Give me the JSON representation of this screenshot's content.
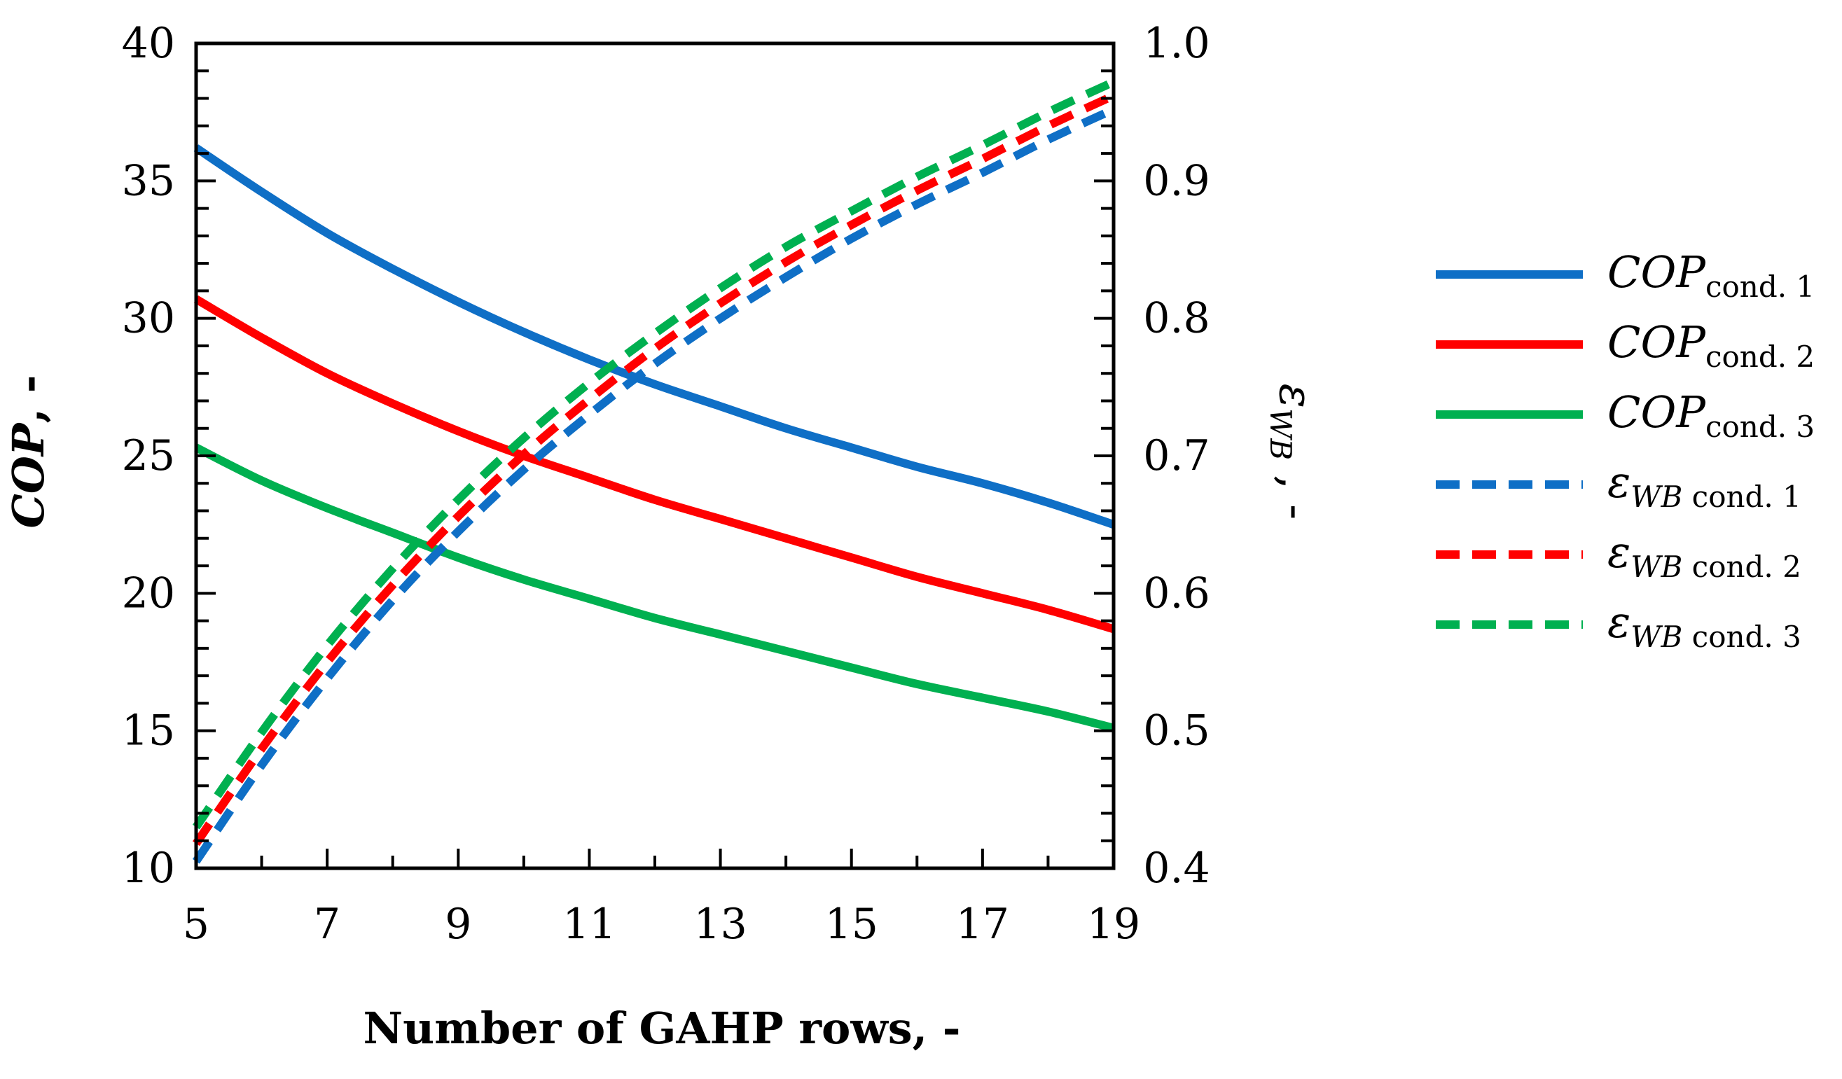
{
  "chart_data": {
    "type": "line",
    "title": "",
    "xlabel": "Number of GAHP rows, -",
    "ylabel_left": {
      "main": "COP",
      "suffix": ", -"
    },
    "ylabel_right": {
      "main": "ε",
      "sub": "WB",
      "suffix": " , -"
    },
    "xlim": [
      5,
      19
    ],
    "ylim_left": [
      10,
      40
    ],
    "ylim_right": [
      0.4,
      1.0
    ],
    "x_ticks": [
      "5",
      "7",
      "9",
      "11",
      "13",
      "15",
      "17",
      "19"
    ],
    "y_left_ticks": [
      "10",
      "15",
      "20",
      "25",
      "30",
      "35",
      "40"
    ],
    "y_right_ticks": [
      "0.4",
      "0.5",
      "0.6",
      "0.7",
      "0.8",
      "0.9",
      "1.0"
    ],
    "grid": false,
    "legend_position": "right",
    "x": [
      5,
      6,
      7,
      8,
      9,
      10,
      11,
      12,
      13,
      14,
      15,
      16,
      17,
      18,
      19
    ],
    "series": [
      {
        "name": "COP cond. 1",
        "label_main": "COP",
        "label_sub": "cond. 1",
        "axis": "left",
        "style": "solid",
        "color": "#0F6FC6",
        "values": [
          36.2,
          34.6,
          33.1,
          31.8,
          30.6,
          29.5,
          28.5,
          27.6,
          26.8,
          26.0,
          25.3,
          24.6,
          24.0,
          23.3,
          22.5
        ]
      },
      {
        "name": "COP cond. 2",
        "label_main": "COP",
        "label_sub": "cond. 2",
        "axis": "left",
        "style": "solid",
        "color": "#FF0000",
        "values": [
          30.7,
          29.3,
          28.0,
          26.9,
          25.9,
          25.0,
          24.2,
          23.4,
          22.7,
          22.0,
          21.3,
          20.6,
          20.0,
          19.4,
          18.7
        ]
      },
      {
        "name": "COP cond. 3",
        "label_main": "COP",
        "label_sub": "cond. 3",
        "axis": "left",
        "style": "solid",
        "color": "#00B050",
        "values": [
          25.3,
          24.1,
          23.1,
          22.2,
          21.3,
          20.5,
          19.8,
          19.1,
          18.5,
          17.9,
          17.3,
          16.7,
          16.2,
          15.7,
          15.1
        ]
      },
      {
        "name": "εWB cond. 1",
        "label_main": "ε",
        "label_sub": "WB",
        "label_sub2": " cond. 1",
        "axis": "right",
        "style": "dashed",
        "color": "#0F6FC6",
        "values": [
          0.405,
          0.475,
          0.538,
          0.595,
          0.645,
          0.69,
          0.73,
          0.767,
          0.8,
          0.83,
          0.858,
          0.883,
          0.906,
          0.93,
          0.952
        ]
      },
      {
        "name": "εWB cond. 2",
        "label_main": "ε",
        "label_sub": "WB",
        "label_sub2": " cond. 2",
        "axis": "right",
        "style": "dashed",
        "color": "#FF0000",
        "values": [
          0.418,
          0.487,
          0.55,
          0.606,
          0.656,
          0.701,
          0.741,
          0.778,
          0.811,
          0.841,
          0.868,
          0.893,
          0.916,
          0.94,
          0.962
        ]
      },
      {
        "name": "εWB cond. 3",
        "label_main": "ε",
        "label_sub": "WB",
        "label_sub2": " cond. 3",
        "axis": "right",
        "style": "dashed",
        "color": "#00B050",
        "values": [
          0.43,
          0.499,
          0.562,
          0.618,
          0.668,
          0.713,
          0.753,
          0.789,
          0.822,
          0.852,
          0.878,
          0.903,
          0.926,
          0.95,
          0.972
        ]
      }
    ]
  }
}
